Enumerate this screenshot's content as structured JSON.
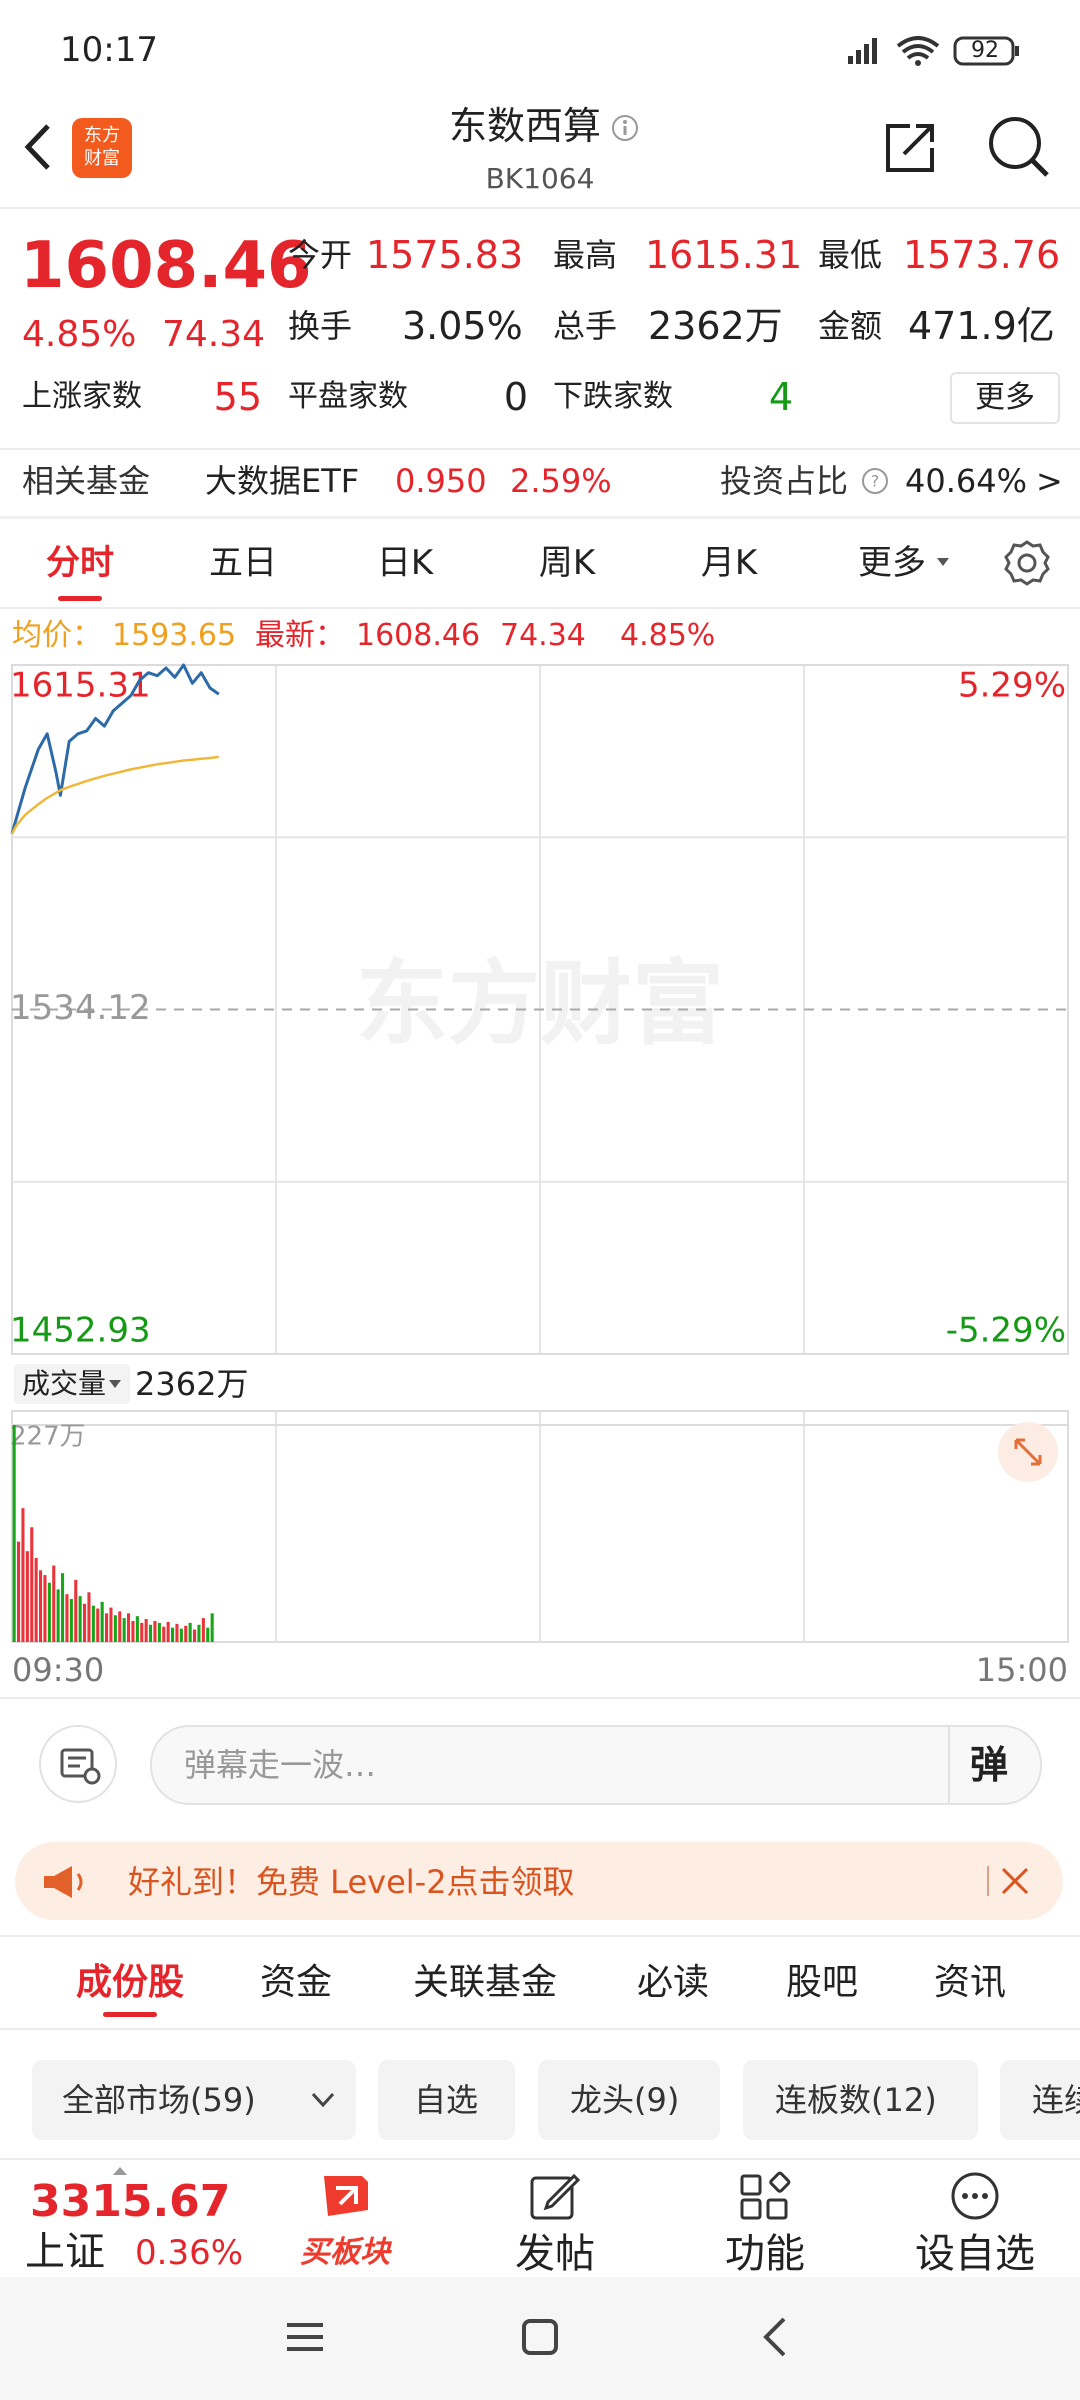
{
  "status_bar": {
    "time": "10:17",
    "battery": "92"
  },
  "header": {
    "logo": [
      "东方",
      "财富"
    ],
    "title": "东数西算",
    "code": "BK1064"
  },
  "quote": {
    "price": "1608.46",
    "change_pct": "4.85%",
    "change": "74.34",
    "rows": [
      [
        {
          "label": "今开",
          "value": "1575.83"
        },
        {
          "label": "最高",
          "value": "1615.31"
        },
        {
          "label": "最低",
          "value": "1573.76"
        }
      ],
      [
        {
          "label": "换手",
          "value": "3.05%"
        },
        {
          "label": "总手",
          "value": "2362万"
        },
        {
          "label": "金额",
          "value": "471.9亿"
        }
      ],
      [
        {
          "label": "上涨家数",
          "value": "55"
        },
        {
          "label": "平盘家数",
          "value": "0"
        },
        {
          "label": "下跌家数",
          "value": "4"
        }
      ]
    ],
    "more": "更多"
  },
  "fund": {
    "label": "相关基金",
    "name": "大数据ETF",
    "price": "0.950",
    "change_pct": "2.59%",
    "ratio_label": "投资占比",
    "ratio": "40.64%",
    "arrow": ">"
  },
  "tabs": [
    "分时",
    "五日",
    "日K",
    "周K",
    "月K",
    "更多"
  ],
  "info_line": {
    "avg_label": "均价：",
    "avg": "1593.65",
    "latest_label": "最新：",
    "latest": "1608.46",
    "change": "74.34",
    "change_pct": "4.85%"
  },
  "watermark": "东方财富",
  "chart_data": [
    {
      "type": "line",
      "x": [
        0,
        1,
        3,
        6,
        8,
        10,
        11,
        13,
        15,
        17,
        19,
        21,
        23,
        25,
        27,
        29,
        31,
        33,
        35,
        37,
        39,
        41,
        43,
        45,
        47
      ],
      "series": [
        {
          "color": "#2d6aa8",
          "values": [
            1575.6,
            1579.2,
            1586.4,
            1595.5,
            1599.1,
            1590.0,
            1584.6,
            1597.3,
            1599.1,
            1599.8,
            1602.7,
            1600.9,
            1604.5,
            1606.3,
            1608.1,
            1611.7,
            1613.5,
            1612.8,
            1614.6,
            1612.4,
            1615.3,
            1611.0,
            1613.5,
            1609.9,
            1608.46
          ]
        },
        {
          "color": "#f0b83a",
          "values": [
            1575.6,
            1577.5,
            1580.0,
            1582.5,
            1584.0,
            1585.2,
            1585.8,
            1586.6,
            1587.3,
            1588.0,
            1588.6,
            1589.2,
            1589.7,
            1590.2,
            1590.7,
            1591.1,
            1591.5,
            1591.9,
            1592.2,
            1592.5,
            1592.8,
            1593.0,
            1593.2,
            1593.4,
            1593.65
          ]
        }
      ],
      "xlim": [
        0,
        240
      ],
      "xgrid": [
        60,
        120,
        180
      ],
      "ylim": [
        1452.93,
        1615.31
      ],
      "yticks": [
        1452.93,
        1534.12,
        1615.31
      ],
      "ygrid": [
        1493.525,
        1574.715
      ],
      "y2lim": [
        -5.29,
        5.29
      ],
      "y2ticks": [
        {
          "value": -5.29,
          "label": "-5.29%"
        },
        {
          "value": 5.29,
          "label": "5.29%"
        }
      ]
    },
    {
      "type": "bar",
      "x": [
        0,
        1,
        2,
        3,
        4,
        5,
        6,
        7,
        8,
        9,
        10,
        11,
        12,
        13,
        14,
        15,
        16,
        17,
        18,
        19,
        20,
        21,
        22,
        23,
        24,
        25,
        26,
        27,
        28,
        29,
        30,
        31,
        32,
        33,
        34,
        35,
        36,
        37,
        38,
        39,
        40,
        41,
        42,
        43,
        44,
        45
      ],
      "values": [
        227,
        105,
        140,
        95,
        120,
        88,
        75,
        70,
        62,
        80,
        55,
        72,
        50,
        45,
        65,
        48,
        40,
        52,
        38,
        35,
        42,
        30,
        36,
        28,
        32,
        25,
        30,
        22,
        27,
        20,
        24,
        18,
        22,
        20,
        16,
        21,
        15,
        19,
        14,
        17,
        20,
        13,
        18,
        25,
        15,
        30
      ],
      "bar_colors": [
        "#17a617",
        "#e8343a",
        "#e8343a",
        "#e8343a",
        "#e8343a",
        "#e8343a",
        "#e8343a",
        "#e8343a",
        "#17a617",
        "#e8343a",
        "#17a617",
        "#17a617",
        "#e8343a",
        "#17a617",
        "#e8343a",
        "#17a617",
        "#e8343a",
        "#e8343a",
        "#17a617",
        "#e8343a",
        "#17a617",
        "#e8343a",
        "#e8343a",
        "#17a617",
        "#e8343a",
        "#17a617",
        "#e8343a",
        "#e8343a",
        "#17a617",
        "#e8343a",
        "#e8343a",
        "#17a617",
        "#e8343a",
        "#17a617",
        "#e8343a",
        "#e8343a",
        "#17a617",
        "#e8343a",
        "#17a617",
        "#e8343a",
        "#17a617",
        "#e8343a",
        "#17a617",
        "#e8343a",
        "#17a617",
        "#17a617"
      ],
      "xlim": [
        0,
        240
      ],
      "xgrid": [
        60,
        120,
        180
      ],
      "xticks": [
        {
          "value": 0,
          "label": "09:30"
        },
        {
          "value": 240,
          "label": "15:00"
        }
      ],
      "ylim": [
        0,
        227
      ],
      "yticks": [
        {
          "value": 227,
          "label": "227万"
        }
      ]
    }
  ],
  "volume_header": {
    "label": "成交量",
    "value": "2362万"
  },
  "danmaku": {
    "placeholder": "弹幕走一波…",
    "button": "弹"
  },
  "banner": "好礼到！免费 Level-2点击领取",
  "section_tabs": [
    "成份股",
    "资金",
    "关联基金",
    "必读",
    "股吧",
    "资讯"
  ],
  "filters": [
    "全部市场(59)",
    "自选",
    "龙头(9)",
    "连板数(12)",
    "连续"
  ],
  "bottom_bar": {
    "index_value": "3315.67",
    "index_name": "上证",
    "index_change": "0.36%",
    "items": [
      "买板块",
      "发帖",
      "功能",
      "设自选"
    ]
  }
}
